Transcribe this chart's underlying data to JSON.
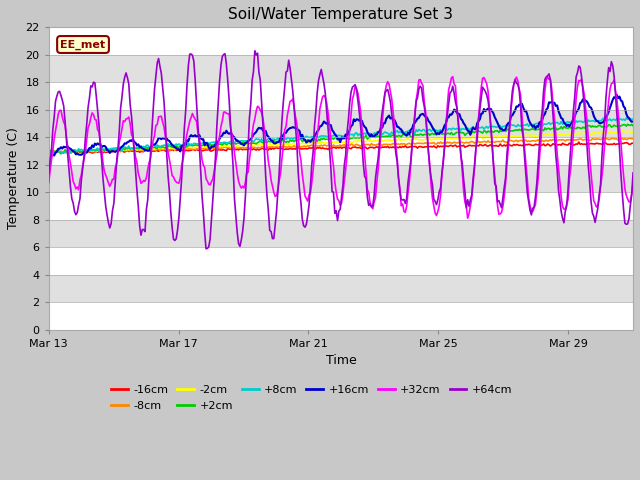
{
  "title": "Soil/Water Temperature Set 3",
  "xlabel": "Time",
  "ylabel": "Temperature (C)",
  "ylim": [
    0,
    22
  ],
  "yticks": [
    0,
    2,
    4,
    6,
    8,
    10,
    12,
    14,
    16,
    18,
    20,
    22
  ],
  "annotation_text": "EE_met",
  "annotation_bg": "#ffffcc",
  "annotation_border": "#8B0000",
  "series": [
    {
      "label": "-16cm",
      "color": "#ff0000"
    },
    {
      "label": "-8cm",
      "color": "#ff8800"
    },
    {
      "label": "-2cm",
      "color": "#ffff00"
    },
    {
      "label": "+2cm",
      "color": "#00cc00"
    },
    {
      "label": "+8cm",
      "color": "#00cccc"
    },
    {
      "label": "+16cm",
      "color": "#0000cc"
    },
    {
      "label": "+32cm",
      "color": "#ff00ff"
    },
    {
      "label": "+64cm",
      "color": "#9900cc"
    }
  ],
  "xstart_day": 13,
  "xend_day": 31,
  "xtick_days": [
    13,
    17,
    21,
    25,
    29
  ],
  "xtick_labels": [
    "Mar 13",
    "Mar 17",
    "Mar 21",
    "Mar 25",
    "Mar 29"
  ],
  "band_colors": [
    "#ffffff",
    "#e0e0e0"
  ],
  "fig_bg": "#c8c8c8"
}
